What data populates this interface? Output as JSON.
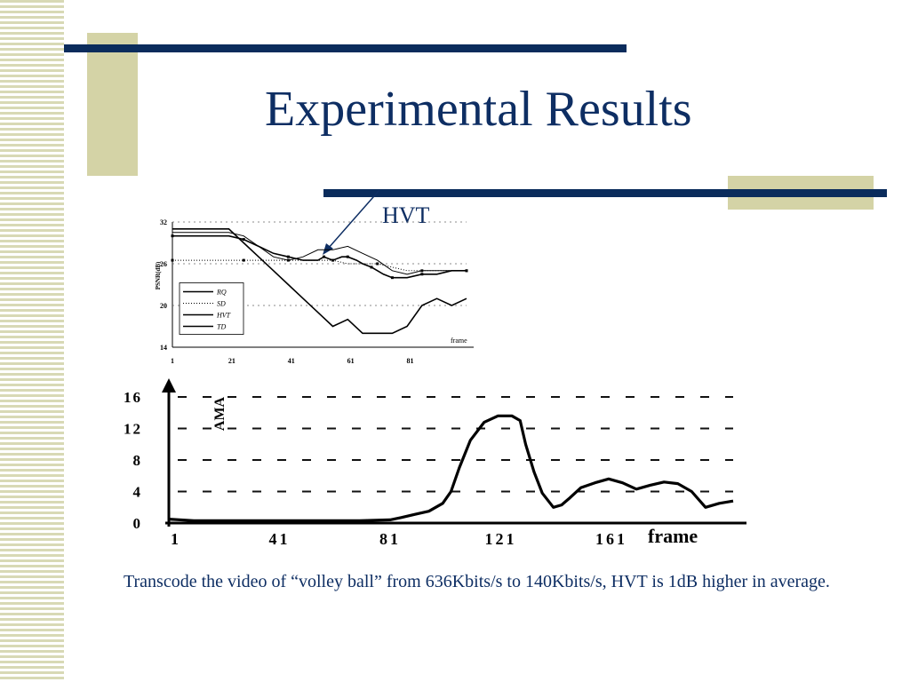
{
  "slide": {
    "title": "Experimental Results",
    "arrow_label": "HVT",
    "caption": "Transcode the video of “volley ball” from 636Kbits/s to 140Kbits/s, HVT is 1dB higher in average.",
    "colors": {
      "title": "#0e2e63",
      "bars": "#0b2c5c",
      "accent_boxes": "#d4d3a6",
      "stripes": "#d8d9b5"
    }
  },
  "chart_data": [
    {
      "type": "line",
      "ylabel": "PSNR(dB)",
      "xlabel": "frame",
      "xlim": [
        1,
        100
      ],
      "ylim": [
        14,
        32
      ],
      "x_ticks": [
        1,
        21,
        41,
        61,
        81
      ],
      "y_ticks": [
        14,
        20,
        26,
        32
      ],
      "legend": {
        "position": "bottom-left",
        "entries": [
          "RQ",
          "SD",
          "HVT",
          "TD"
        ]
      },
      "series": [
        {
          "name": "RQ",
          "x": [
            1,
            10,
            20,
            25,
            30,
            35,
            40,
            45,
            50,
            52,
            55,
            58,
            60,
            63,
            65,
            68,
            70,
            72,
            75,
            78,
            80,
            85,
            90,
            95,
            100
          ],
          "y": [
            30,
            30,
            30,
            29.5,
            28.5,
            27.5,
            27,
            26.5,
            26.5,
            27,
            26.5,
            27,
            27,
            26.5,
            26,
            25.5,
            25,
            24.5,
            24,
            24,
            24,
            24.5,
            24.5,
            25,
            25
          ]
        },
        {
          "name": "SD",
          "x": [
            1,
            10,
            20,
            25,
            30,
            35,
            40,
            45,
            50,
            55,
            60,
            65,
            70,
            75,
            80,
            85,
            90,
            95,
            100
          ],
          "y": [
            26.5,
            26.5,
            26.5,
            26.5,
            26.5,
            26.5,
            26.5,
            26.5,
            26.5,
            26.5,
            26,
            26,
            26,
            25.5,
            25,
            25,
            25,
            25,
            25
          ]
        },
        {
          "name": "HVT",
          "x": [
            1,
            10,
            20,
            25,
            30,
            35,
            40,
            45,
            50,
            55,
            60,
            65,
            70,
            75,
            80,
            85,
            90,
            95,
            100
          ],
          "y": [
            30.5,
            30.5,
            30.5,
            30,
            28.5,
            27,
            26.5,
            27,
            28,
            28,
            28.5,
            27.5,
            26.5,
            25,
            24.5,
            25,
            25,
            25,
            25
          ]
        },
        {
          "name": "TD",
          "x": [
            1,
            10,
            20,
            25,
            30,
            35,
            40,
            45,
            50,
            55,
            60,
            65,
            70,
            75,
            80,
            85,
            90,
            95,
            100
          ],
          "y": [
            31,
            31,
            31,
            29,
            27,
            25,
            23,
            21,
            19,
            17,
            18,
            16,
            16,
            16,
            17,
            20,
            21,
            20,
            21
          ]
        }
      ]
    },
    {
      "type": "line",
      "ylabel": "AMA",
      "xlabel": "frame",
      "xlim": [
        1,
        200
      ],
      "ylim": [
        0,
        16
      ],
      "x_ticks": [
        1,
        41,
        81,
        121,
        161
      ],
      "y_ticks": [
        0,
        4,
        8,
        12,
        16
      ],
      "grid": true,
      "series": [
        {
          "name": "",
          "x": [
            1,
            10,
            40,
            70,
            81,
            85,
            90,
            95,
            100,
            103,
            106,
            110,
            115,
            120,
            125,
            128,
            130,
            133,
            136,
            140,
            143,
            146,
            150,
            155,
            160,
            165,
            170,
            175,
            180,
            185,
            190,
            195,
            200,
            205
          ],
          "y": [
            0.5,
            0.3,
            0.3,
            0.3,
            0.4,
            0.7,
            1.1,
            1.5,
            2.5,
            4,
            7,
            10.5,
            12.8,
            13.6,
            13.6,
            13,
            10,
            6.5,
            3.8,
            2,
            2.3,
            3.2,
            4.5,
            5.1,
            5.6,
            5.1,
            4.3,
            4.8,
            5.2,
            5,
            4,
            2,
            2.5,
            2.8
          ]
        }
      ]
    }
  ]
}
